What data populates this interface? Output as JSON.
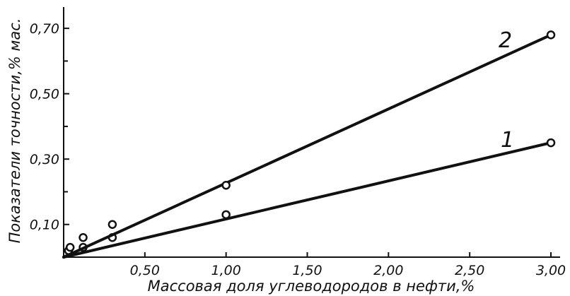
{
  "chart_data": {
    "type": "line",
    "title": "",
    "xlabel": "Массовая доля углеводородов в нефти,%",
    "ylabel": "Показатели точности,% мас.",
    "xlim": [
      0,
      3.0
    ],
    "ylim": [
      0,
      0.75
    ],
    "x_ticks": [
      "0,50",
      "1,00",
      "1,50",
      "2,00",
      "2,50",
      "3,00"
    ],
    "x_tick_values": [
      0.5,
      1.0,
      1.5,
      2.0,
      2.5,
      3.0
    ],
    "y_ticks": [
      "0,10",
      "0,30",
      "0,50",
      "0,70"
    ],
    "y_tick_values": [
      0.1,
      0.3,
      0.5,
      0.7
    ],
    "grid": false,
    "colors": {
      "ink": "#111111",
      "background": "#ffffff"
    },
    "series": [
      {
        "name": "1",
        "line": {
          "x": [
            0.0,
            3.0
          ],
          "y": [
            0.0,
            0.35
          ]
        },
        "points": [
          {
            "x": 0.03,
            "y": 0.02
          },
          {
            "x": 0.12,
            "y": 0.03
          },
          {
            "x": 0.3,
            "y": 0.06
          },
          {
            "x": 1.0,
            "y": 0.13
          },
          {
            "x": 3.0,
            "y": 0.35
          }
        ]
      },
      {
        "name": "2",
        "line": {
          "x": [
            0.0,
            3.0
          ],
          "y": [
            0.0,
            0.68
          ]
        },
        "points": [
          {
            "x": 0.04,
            "y": 0.03
          },
          {
            "x": 0.12,
            "y": 0.06
          },
          {
            "x": 0.3,
            "y": 0.1
          },
          {
            "x": 1.0,
            "y": 0.22
          },
          {
            "x": 3.0,
            "y": 0.68
          }
        ]
      }
    ]
  }
}
